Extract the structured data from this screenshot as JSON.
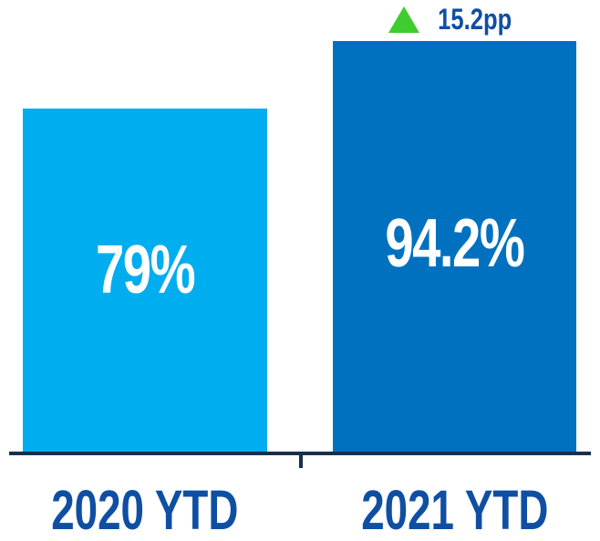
{
  "chart_data": {
    "type": "bar",
    "categories": [
      "2020 YTD",
      "2021 YTD"
    ],
    "values": [
      79,
      94.2
    ],
    "value_labels": [
      "79%",
      "94.2%"
    ],
    "ylim": [
      0,
      100
    ],
    "title": "",
    "xlabel": "",
    "ylabel": "",
    "grid": false,
    "legend": false,
    "bar_colors": [
      "#00ADEE",
      "#0071BF"
    ],
    "annotation": {
      "icon": "up-triangle",
      "text": "15.2pp",
      "applies_to": "2021 YTD"
    }
  },
  "colors": {
    "bar_2020": "#00ADEE",
    "bar_2021": "#0071BF",
    "value_text": "#FFFFFF",
    "category_label_text": "#0F4FA3",
    "annotation_text": "#0F4FA3",
    "annotation_triangle": "#3FCC30",
    "axis_line": "#17304E",
    "background": "#FFFFFF"
  }
}
